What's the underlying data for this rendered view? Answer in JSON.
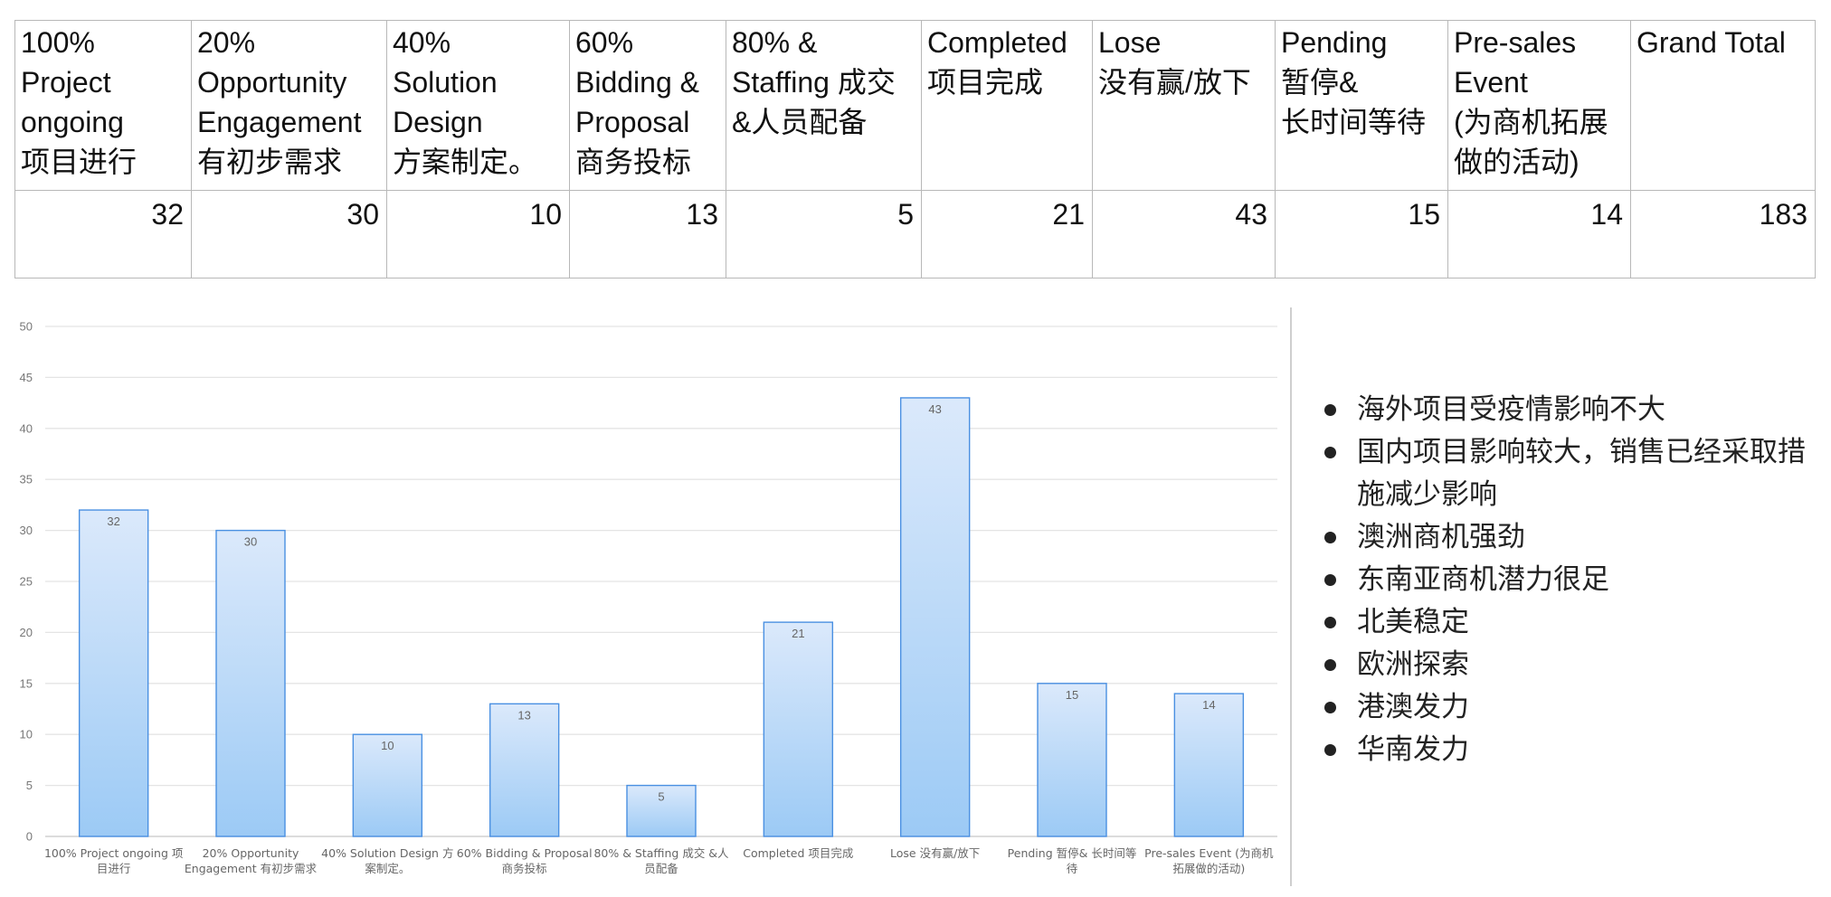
{
  "table": {
    "headers": [
      "100%\nProject\nongoing\n项目进行",
      "20%\nOpportunity\nEngagement\n有初步需求",
      "40%\nSolution\nDesign\n方案制定。",
      "60%\nBidding &\nProposal\n商务投标",
      "80% &\nStaffing 成交\n&人员配备",
      "Completed\n项目完成",
      "Lose\n没有赢/放下",
      "Pending\n暂停&\n长时间等待",
      "Pre-sales\nEvent\n(为商机拓展\n做的活动)",
      "Grand Total"
    ],
    "values": [
      "32",
      "30",
      "10",
      "13",
      "5",
      "21",
      "43",
      "15",
      "14",
      "183"
    ]
  },
  "chart_data": {
    "type": "bar",
    "categories": [
      "100% Project ongoing 项目进行",
      "20% Opportunity Engagement 有初步需求",
      "40% Solution Design 方案制定。",
      "60% Bidding & Proposal 商务投标",
      "80% & Staffing 成交 &人员配备",
      "Completed 项目完成",
      "Lose 没有赢/放下",
      "Pending 暂停& 长时间等待",
      "Pre-sales Event (为商机拓展做的活动)"
    ],
    "category_label_lines": [
      [
        "100% Project ongoing 项",
        "目进行"
      ],
      [
        "20% Opportunity",
        "Engagement 有初步需求"
      ],
      [
        "40% Solution Design 方",
        "案制定。"
      ],
      [
        "60% Bidding & Proposal",
        "商务投标"
      ],
      [
        "80% & Staffing 成交 &人",
        "员配备"
      ],
      [
        "Completed 项目完成"
      ],
      [
        "Lose 没有赢/放下"
      ],
      [
        "Pending 暂停& 长时间等",
        "待"
      ],
      [
        "Pre-sales Event (为商机",
        "拓展做的活动)"
      ]
    ],
    "values": [
      32,
      30,
      10,
      13,
      5,
      21,
      43,
      15,
      14
    ],
    "ylim": [
      0,
      50
    ],
    "yticks": [
      0,
      5,
      10,
      15,
      20,
      25,
      30,
      35,
      40,
      45,
      50
    ],
    "grid": true,
    "bar_color_top": "#dbe9fb",
    "bar_color_bottom": "#9ccaf5",
    "bar_stroke": "#4a90e2",
    "title": "",
    "xlabel": "",
    "ylabel": ""
  },
  "notes": [
    "海外项目受疫情影响不大",
    "国内项目影响较大，销售已经采取措施减少影响",
    "澳洲商机强劲",
    "东南亚商机潜力很足",
    "北美稳定",
    "欧洲探索",
    "港澳发力",
    "华南发力"
  ]
}
